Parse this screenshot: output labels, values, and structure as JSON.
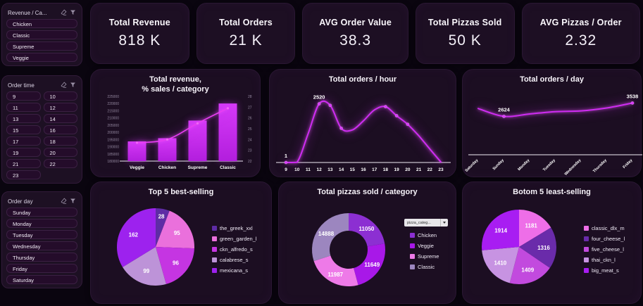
{
  "theme": {
    "page_bg": "#0a050f",
    "card_bg": "#1c0e22",
    "panel_bg": "#1d1023",
    "item_bg": "#240c2a",
    "accent": "#c82df2",
    "text": "#f4eff8",
    "muted": "#93879f"
  },
  "sidebar": {
    "panels": [
      {
        "id": "category",
        "title": "Revenue / Ca...",
        "columns": 1,
        "items": [
          "Chicken",
          "Classic",
          "Supreme",
          "Veggie"
        ]
      },
      {
        "id": "order-time",
        "title": "Order time",
        "columns": 2,
        "items": [
          "9",
          "10",
          "11",
          "12",
          "13",
          "14",
          "15",
          "16",
          "17",
          "18",
          "19",
          "20",
          "21",
          "22",
          "23"
        ]
      },
      {
        "id": "order-day",
        "title": "Order day",
        "columns": 1,
        "items": [
          "Sunday",
          "Monday",
          "Tuesday",
          "Wednesday",
          "Thursday",
          "Friday",
          "Saturday"
        ]
      }
    ]
  },
  "kpis": [
    {
      "label": "Total Revenue",
      "value": "818 K"
    },
    {
      "label": "Total Orders",
      "value": "21 K"
    },
    {
      "label": "AVG Order Value",
      "value": "38.3"
    },
    {
      "label": "Total Pizzas Sold",
      "value": "50 K"
    },
    {
      "label": "AVG Pizzas / Order",
      "value": "2.32"
    }
  ],
  "chart_data": [
    {
      "id": "revenue-by-category",
      "type": "bar",
      "title_lines": [
        "Total revenue,",
        "% sales / category"
      ],
      "categories": [
        "Veggie",
        "Chicken",
        "Supreme",
        "Classic"
      ],
      "series": [
        {
          "name": "Total revenue",
          "type": "bar",
          "axis": "left",
          "values": [
            193690,
            195920,
            208197,
            220053
          ]
        },
        {
          "name": "% sales",
          "type": "line",
          "axis": "right",
          "values": [
            23.7,
            24,
            25.5,
            26.9
          ]
        }
      ],
      "left_axis": {
        "min": 180000,
        "max": 225000,
        "step": 5000
      },
      "right_axis": {
        "min": 22,
        "max": 28,
        "step": 1
      },
      "grid": false,
      "legend_position": "none"
    },
    {
      "id": "orders-per-hour",
      "type": "line",
      "title": "Total orders / hour",
      "x": [
        "9",
        "10",
        "11",
        "12",
        "13",
        "14",
        "15",
        "16",
        "17",
        "18",
        "19",
        "20",
        "21",
        "22",
        "23"
      ],
      "values": [
        1,
        8,
        1230,
        2520,
        2455,
        1470,
        1400,
        1790,
        2260,
        2400,
        2010,
        1640,
        1150,
        580,
        20
      ],
      "point_labels": {
        "0": "1",
        "3": "2520"
      },
      "marker_indices": [
        0,
        3,
        4,
        5,
        9,
        10,
        11
      ],
      "ylim": [
        0,
        2720
      ],
      "grid": false
    },
    {
      "id": "orders-per-day",
      "type": "line",
      "title": "Total orders / day",
      "x": [
        "Saturday",
        "Sunday",
        "Monday",
        "Tuesday",
        "Wednesday",
        "Thursday",
        "Friday"
      ],
      "values": [
        3160,
        2624,
        2790,
        2950,
        3000,
        3200,
        3538
      ],
      "point_labels": {
        "1": "2624",
        "6": "3538"
      },
      "marker_indices": [
        1,
        6
      ],
      "x_label_rotation": -45,
      "ylim": [
        0,
        3800
      ],
      "grid": false
    },
    {
      "id": "top-5-best-selling",
      "type": "pie",
      "title": "Top 5 best-selling",
      "slices": [
        {
          "label": "the_greek_xxl",
          "value": 28,
          "color": "#5e2ca5"
        },
        {
          "label": "green_garden_l",
          "value": 95,
          "color": "#ea70dc"
        },
        {
          "label": "ckn_alfredo_s",
          "value": 96,
          "color": "#c535e2"
        },
        {
          "label": "calabrese_s",
          "value": 99,
          "color": "#bd93d8"
        },
        {
          "label": "mexicana_s",
          "value": 162,
          "color": "#9d22ee"
        }
      ],
      "legend_position": "right"
    },
    {
      "id": "total-pizzas-sold-by-category",
      "type": "donut",
      "title": "Total pizzas sold / category",
      "dropdown_label": "pizza_categ...",
      "slices": [
        {
          "label": "Chicken",
          "value": 11050,
          "color": "#8c2fd2"
        },
        {
          "label": "Veggie",
          "value": 11649,
          "color": "#a818e8"
        },
        {
          "label": "Supreme",
          "value": 11987,
          "color": "#ee7ae8"
        },
        {
          "label": "Classic",
          "value": 14888,
          "color": "#9c86bf"
        }
      ],
      "legend_position": "right"
    },
    {
      "id": "bottom-5-least-selling",
      "type": "pie",
      "title": "Botom 5 least-selling",
      "slices": [
        {
          "label": "classic_dlx_m",
          "value": 1181,
          "color": "#ee6ee8"
        },
        {
          "label": "four_cheese_l",
          "value": 1316,
          "color": "#6a2baa"
        },
        {
          "label": "five_cheese_l",
          "value": 1409,
          "color": "#c24ade"
        },
        {
          "label": "thai_ckn_l",
          "value": 1410,
          "color": "#c793e2"
        },
        {
          "label": "big_meat_s",
          "value": 1914,
          "color": "#a81df2"
        }
      ],
      "legend_position": "right"
    }
  ]
}
